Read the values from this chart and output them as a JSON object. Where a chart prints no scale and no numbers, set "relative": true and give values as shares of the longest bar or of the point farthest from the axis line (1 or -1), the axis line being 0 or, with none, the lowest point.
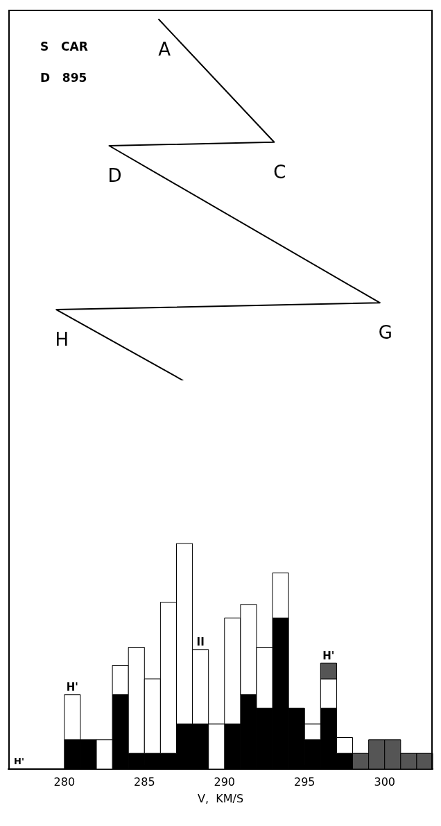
{
  "chart_data": [
    {
      "type": "line",
      "relative": true,
      "marker": "none",
      "line_style": "solid",
      "tick_labels": false,
      "xlim": [
        276.5,
        303
      ],
      "series": [
        {
          "color": "#000000",
          "x": [
            285.9,
            293.1,
            282.8,
            299.7,
            279.5,
            287.4
          ],
          "values": [
            1,
            0.66,
            0.65,
            0.215,
            0.196,
            0
          ]
        }
      ],
      "annotations": [
        "S   CAR",
        "D   895",
        {
          "text": "A",
          "x": 285.9,
          "y": 1
        },
        {
          "text": "C",
          "x": 293.1,
          "y": 0.66
        },
        {
          "text": "D",
          "x": 282.8,
          "y": 0.65
        },
        {
          "text": "G",
          "x": 299.7,
          "y": 0.215
        },
        {
          "text": "H",
          "x": 279.5,
          "y": 0.196
        }
      ]
    },
    {
      "type": "bar",
      "relative": true,
      "stacked": true,
      "tick_labels": "x",
      "xlabel": "V,  KM/S",
      "xlim": [
        276.5,
        303
      ],
      "xticks": [
        280,
        285,
        290,
        295,
        300
      ],
      "x": [
        280.5,
        281.5,
        282.5,
        283.5,
        284.5,
        285.5,
        286.5,
        287.5,
        288.5,
        289.5,
        290.5,
        291.5,
        292.5,
        293.5,
        294.5,
        295.5,
        296.5,
        297.5,
        298.5,
        299.5,
        300.5,
        301.5,
        302.5
      ],
      "series": [
        {
          "color": "#000000",
          "values": [
            0.13,
            0.13,
            0,
            0.33,
            0.07,
            0.07,
            0.07,
            0.2,
            0.2,
            0,
            0.2,
            0.33,
            0.27,
            0.67,
            0.27,
            0.13,
            0.27,
            0.07,
            0,
            0,
            0,
            0,
            0
          ]
        },
        {
          "color": "#ffffff",
          "values": [
            0.2,
            0,
            0.13,
            0.13,
            0.47,
            0.33,
            0.67,
            0.8,
            0.33,
            0.2,
            0.47,
            0.4,
            0.27,
            0.2,
            0,
            0.07,
            0.13,
            0.07,
            0,
            0,
            0,
            0,
            0
          ]
        },
        {
          "color": "#555555",
          "values": [
            0,
            0,
            0,
            0,
            0,
            0,
            0,
            0,
            0,
            0,
            0,
            0,
            0,
            0,
            0,
            0,
            0.07,
            0,
            0.07,
            0.13,
            0.13,
            0.07,
            0.07
          ]
        }
      ],
      "annotations": [
        {
          "text": "H'",
          "x": 280.5,
          "y": 0.33
        },
        "H'",
        {
          "text": "II",
          "x": 288.5,
          "y": 0.53
        },
        {
          "text": "H'",
          "x": 296.5,
          "y": 0.47
        }
      ]
    }
  ]
}
